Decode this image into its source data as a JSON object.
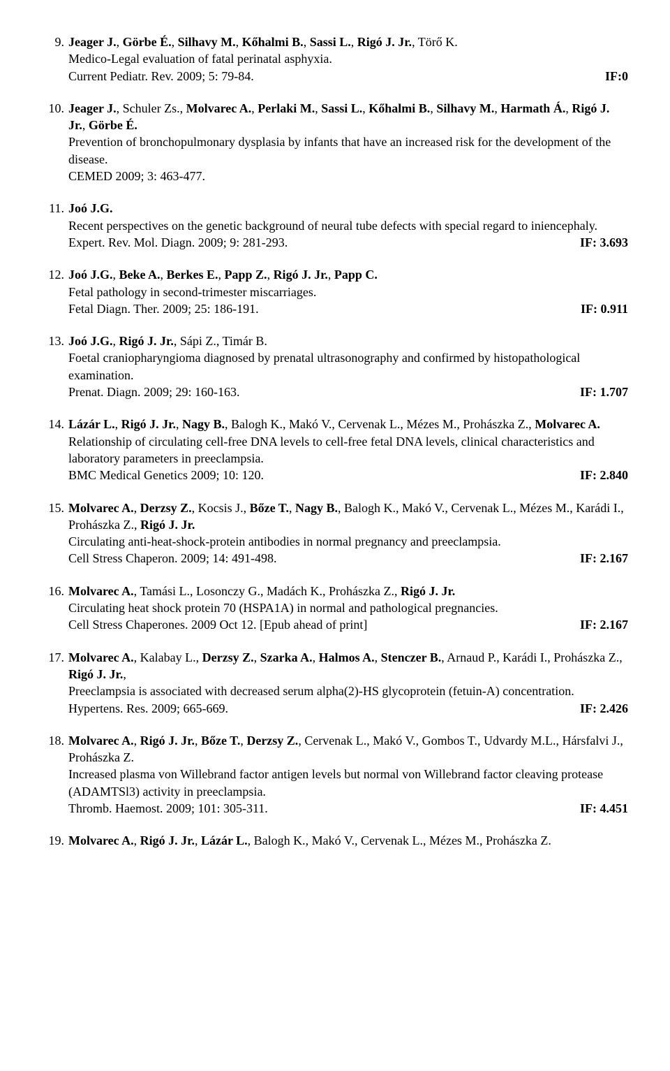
{
  "colors": {
    "text": "#000000",
    "background": "#ffffff"
  },
  "typography": {
    "font_family": "Times New Roman",
    "font_size_pt": 13,
    "bold_weight": 700
  },
  "references": [
    {
      "num": "9.",
      "authors_html": "<b>Jeager J.</b>, <b>Görbe É.</b>, <b>Silhavy M.</b>, <b>Kőhalmi B.</b>, <b>Sassi L.</b>, <b>Rigó J. Jr.</b>, Törő K.",
      "title": "Medico-Legal evaluation of fatal perinatal asphyxia.",
      "journal": "Current Pediatr. Rev. 2009; 5: 79-84.",
      "if_label": "IF:0",
      "if_value": ""
    },
    {
      "num": "10.",
      "authors_html": "<b>Jeager J.</b>, Schuler Zs., <b>Molvarec A.</b>, <b>Perlaki M.</b>, <b>Sassi L.</b>, <b>Kőhalmi B.</b>, <b>Silhavy M.</b>, <b>Harmath Á.</b>, <b>Rigó J. Jr.</b>, <b>Görbe É.</b>",
      "title": "Prevention of bronchopulmonary dysplasia by infants that have an increased risk for the development of the disease.",
      "journal": "CEMED 2009; 3: 463-477.",
      "if_label": "",
      "if_value": ""
    },
    {
      "num": "11.",
      "authors_html": "<b>Joó J.G.</b>",
      "title": "Recent perspectives on the genetic background of neural tube defects with special regard to iniencephaly.",
      "journal": "Expert. Rev. Mol. Diagn. 2009; 9: 281-293.",
      "if_label": "IF: ",
      "if_value": "3.693"
    },
    {
      "num": "12.",
      "authors_html": "<b>Joó J.G.</b>, <b>Beke A.</b>, <b>Berkes E.</b>, <b>Papp Z.</b>, <b>Rigó J. Jr.</b>, <b>Papp C.</b>",
      "title": "Fetal pathology in second-trimester miscarriages.",
      "journal": "Fetal Diagn. Ther. 2009; 25: 186-191.",
      "if_label": "IF: ",
      "if_value": "0.911"
    },
    {
      "num": "13.",
      "authors_html": "<b>Joó J.G.</b>, <b>Rigó J. Jr.</b>, Sápi Z., Timár B.",
      "title": "Foetal craniopharyngioma diagnosed by prenatal ultrasonography and confirmed by histopathological examination.",
      "journal": "Prenat. Diagn. 2009; 29: 160-163.",
      "if_label": "IF: ",
      "if_value": "1.707"
    },
    {
      "num": "14.",
      "authors_html": "<b>Lázár L.</b>, <b>Rigó J. Jr.</b>, <b>Nagy B.</b>, Balogh K., Makó V., Cervenak L., Mézes M., Prohászka Z., <b>Molvarec A.</b>",
      "title": "Relationship of circulating cell-free DNA levels to cell-free fetal DNA levels, clinical characteristics and laboratory parameters in preeclampsia.",
      "journal": "BMC Medical Genetics 2009; 10: 120.",
      "if_label": "IF: ",
      "if_value": "2.840"
    },
    {
      "num": "15.",
      "authors_html": "<b>Molvarec A.</b>, <b>Derzsy Z.</b>, Kocsis J., <b>Bőze T.</b>, <b>Nagy B.</b>, Balogh K., Makó V., Cervenak L., Mézes M., Karádi I., Prohászka Z., <b>Rigó J. Jr.</b>",
      "title": "Circulating anti-heat-shock-protein antibodies in normal pregnancy and preeclampsia.",
      "journal": "Cell Stress Chaperon. 2009; 14: 491-498.",
      "if_label": "IF: ",
      "if_value": "2.167"
    },
    {
      "num": "16.",
      "authors_html": "<b>Molvarec A.</b>, Tamási L., Losonczy G., Madách K., Prohászka Z., <b>Rigó J. Jr.</b>",
      "title": "Circulating heat shock protein 70 (HSPA1A) in normal and pathological pregnancies.",
      "journal": "Cell Stress Chaperones. 2009 Oct 12. [Epub ahead of print]",
      "if_label": "IF: ",
      "if_value": "2.167"
    },
    {
      "num": "17.",
      "authors_html": "<b>Molvarec A.</b>, Kalabay L., <b>Derzsy Z.</b>, <b>Szarka A.</b>, <b>Halmos A.</b>, <b>Stenczer B.</b>, Arnaud P., Karádi I., Prohászka Z., <b>Rigó J. Jr.</b>,",
      "title": "Preeclampsia is associated with decreased serum alpha(2)-HS glycoprotein (fetuin-A) concentration.",
      "journal": "Hypertens. Res. 2009; 665-669.",
      "if_label": "IF: ",
      "if_value": "2.426"
    },
    {
      "num": "18.",
      "authors_html": "<b>Molvarec A.</b>, <b>Rigó J. Jr.</b>, <b>Bőze T.</b>, <b>Derzsy Z.</b>, Cervenak L., Makó V., Gombos T., Udvardy M.L., Hársfalvi J., Prohászka Z.",
      "title": "Increased plasma von Willebrand factor antigen levels but normal von Willebrand factor cleaving protease (ADAMTSl3) activity in preeclampsia.",
      "journal": "Thromb. Haemost. 2009; 101: 305-311.",
      "if_label": "IF: ",
      "if_value": "4.451"
    },
    {
      "num": "19.",
      "authors_html": "<b>Molvarec A.</b>, <b>Rigó J. Jr.</b>, <b>Lázár L.</b>, Balogh K., Makó V., Cervenak L., Mézes M., Prohászka Z.",
      "title": "",
      "journal": "",
      "if_label": "",
      "if_value": ""
    }
  ]
}
